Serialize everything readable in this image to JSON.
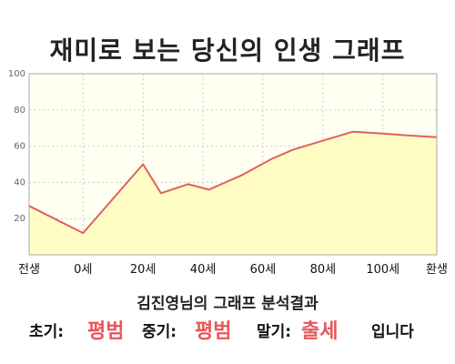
{
  "title": "재미로 보는 당신의 인생 그래프",
  "subtitle": "김진영님의 그래프 분석결과",
  "result": {
    "early_label": "초기:",
    "early_value": "평범",
    "middle_label": "중기:",
    "middle_value": "평범",
    "late_label": "말기:",
    "late_value": "출세",
    "ending": "입니다"
  },
  "colors": {
    "line": "#e06060",
    "fill": "#fffcc4",
    "plot_bg": "#fffff2",
    "grid": "#cccccc",
    "highlight": "#e8575a"
  },
  "chart_data": {
    "type": "area",
    "x_labels": [
      "전생",
      "0세",
      "20세",
      "40세",
      "60세",
      "80세",
      "100세",
      "환생"
    ],
    "x_label_positions": [
      -18,
      0,
      20,
      40,
      60,
      80,
      100,
      118
    ],
    "x": [
      -18,
      0,
      20,
      26,
      35,
      42,
      53,
      63,
      70,
      80,
      90,
      100,
      108,
      118
    ],
    "y": [
      27,
      12,
      50,
      34,
      39,
      36,
      44,
      53,
      58,
      63,
      68,
      67,
      66,
      65
    ],
    "ylim": [
      0,
      100
    ],
    "yticks": [
      20,
      40,
      60,
      80,
      100
    ],
    "xlim": [
      -18,
      118
    ],
    "grid": true
  }
}
